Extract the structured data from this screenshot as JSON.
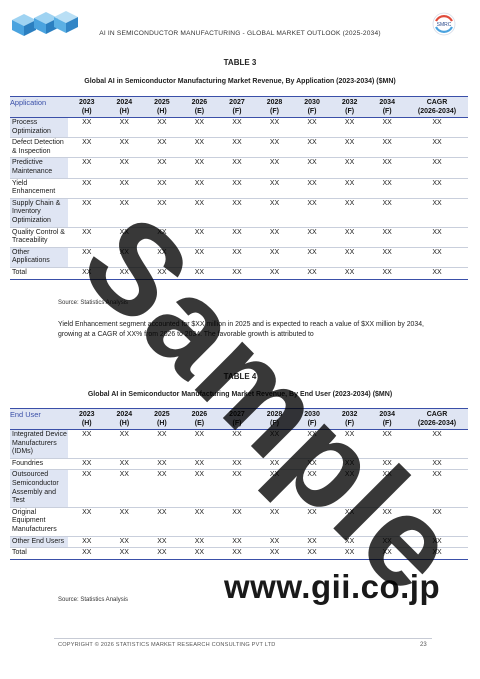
{
  "header": {
    "title": "AI IN SEMICONDUCTOR MANUFACTURING - GLOBAL MARKET OUTLOOK (2025-2034)"
  },
  "table1": {
    "caption": "TABLE 3",
    "title": "Global AI in Semiconductor Manufacturing Market Revenue, By Application (2023-2034) ($MN)",
    "first_header": "Application",
    "columns": [
      {
        "year": "2023",
        "tag": "(H)"
      },
      {
        "year": "2024",
        "tag": "(H)"
      },
      {
        "year": "2025",
        "tag": "(H)"
      },
      {
        "year": "2026",
        "tag": "(E)"
      },
      {
        "year": "2027",
        "tag": "(F)"
      },
      {
        "year": "2028",
        "tag": "(F)"
      },
      {
        "year": "2030",
        "tag": "(F)"
      },
      {
        "year": "2032",
        "tag": "(F)"
      },
      {
        "year": "2034",
        "tag": "(F)"
      },
      {
        "year": "CAGR",
        "tag": "(2026-2034)"
      }
    ],
    "rows": [
      {
        "label": "Process Optimization",
        "values": [
          "XX",
          "XX",
          "XX",
          "XX",
          "XX",
          "XX",
          "XX",
          "XX",
          "XX",
          "XX"
        ]
      },
      {
        "label": "Defect Detection & Inspection",
        "values": [
          "XX",
          "XX",
          "XX",
          "XX",
          "XX",
          "XX",
          "XX",
          "XX",
          "XX",
          "XX"
        ]
      },
      {
        "label": "Predictive Maintenance",
        "values": [
          "XX",
          "XX",
          "XX",
          "XX",
          "XX",
          "XX",
          "XX",
          "XX",
          "XX",
          "XX"
        ]
      },
      {
        "label": "Yield Enhancement",
        "values": [
          "XX",
          "XX",
          "XX",
          "XX",
          "XX",
          "XX",
          "XX",
          "XX",
          "XX",
          "XX"
        ]
      },
      {
        "label": "Supply Chain & Inventory Optimization",
        "values": [
          "XX",
          "XX",
          "XX",
          "XX",
          "XX",
          "XX",
          "XX",
          "XX",
          "XX",
          "XX"
        ]
      },
      {
        "label": "Quality Control & Traceability",
        "values": [
          "XX",
          "XX",
          "XX",
          "XX",
          "XX",
          "XX",
          "XX",
          "XX",
          "XX",
          "XX"
        ]
      },
      {
        "label": "Other Applications",
        "values": [
          "XX",
          "XX",
          "XX",
          "XX",
          "XX",
          "XX",
          "XX",
          "XX",
          "XX",
          "XX"
        ]
      },
      {
        "label": "Total",
        "values": [
          "XX",
          "XX",
          "XX",
          "XX",
          "XX",
          "XX",
          "XX",
          "XX",
          "XX",
          "XX"
        ]
      }
    ],
    "source": "Source: Statistics Analysis"
  },
  "paragraph": "Yield Enhancement segment accounted for $XX million in 2025 and is expected to reach a value of $XX million by 2034, growing at a CAGR of XX% from 2026 to 2034. The favorable growth is attributed to",
  "table2": {
    "caption": "TABLE 4",
    "title": "Global AI in Semiconductor Manufacturing Market Revenue, By End User (2023-2034) ($MN)",
    "first_header": "End User",
    "columns": [
      {
        "year": "2023",
        "tag": "(H)"
      },
      {
        "year": "2024",
        "tag": "(H)"
      },
      {
        "year": "2025",
        "tag": "(H)"
      },
      {
        "year": "2026",
        "tag": "(E)"
      },
      {
        "year": "2027",
        "tag": "(F)"
      },
      {
        "year": "2028",
        "tag": "(F)"
      },
      {
        "year": "2030",
        "tag": "(F)"
      },
      {
        "year": "2032",
        "tag": "(F)"
      },
      {
        "year": "2034",
        "tag": "(F)"
      },
      {
        "year": "CAGR",
        "tag": "(2026-2034)"
      }
    ],
    "rows": [
      {
        "label": "Integrated Device Manufacturers (IDMs)",
        "values": [
          "XX",
          "XX",
          "XX",
          "XX",
          "XX",
          "XX",
          "XX",
          "XX",
          "XX",
          "XX"
        ]
      },
      {
        "label": "Foundries",
        "values": [
          "XX",
          "XX",
          "XX",
          "XX",
          "XX",
          "XX",
          "XX",
          "XX",
          "XX",
          "XX"
        ]
      },
      {
        "label": "Outsourced Semiconductor Assembly and Test",
        "values": [
          "XX",
          "XX",
          "XX",
          "XX",
          "XX",
          "XX",
          "XX",
          "XX",
          "XX",
          "XX"
        ]
      },
      {
        "label": "Original Equipment Manufacturers",
        "values": [
          "XX",
          "XX",
          "XX",
          "XX",
          "XX",
          "XX",
          "XX",
          "XX",
          "XX",
          "XX"
        ]
      },
      {
        "label": "Other End Users",
        "values": [
          "XX",
          "XX",
          "XX",
          "XX",
          "XX",
          "XX",
          "XX",
          "XX",
          "XX",
          "XX"
        ]
      },
      {
        "label": "Total",
        "values": [
          "XX",
          "XX",
          "XX",
          "XX",
          "XX",
          "XX",
          "XX",
          "XX",
          "XX",
          "XX"
        ]
      }
    ],
    "source": "Source: Statistics Analysis"
  },
  "footer": {
    "copyright": "COPYRIGHT © 2026 STATISTICS MARKET RESEARCH CONSULTING PVT LTD",
    "page_number": "23"
  },
  "watermark": "Sample",
  "site_url": "www.gii.co.jp",
  "brand_logo_text": "SMRC",
  "colors": {
    "accent": "#3a4fa8",
    "header_fill": "#dfe5f3",
    "logo_blue": "#4aa3df"
  },
  "icons": [
    "cube-logo-icon",
    "brand-logo-icon"
  ]
}
